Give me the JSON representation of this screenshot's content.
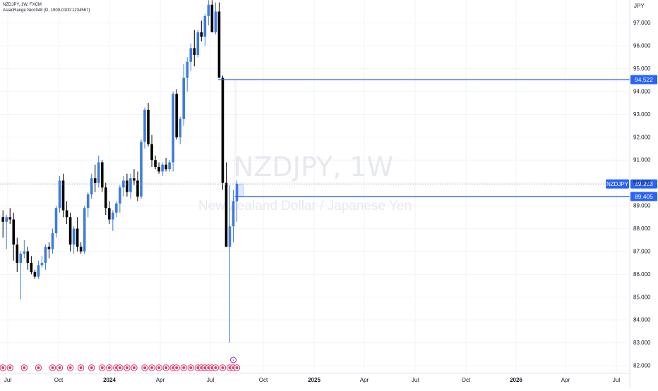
{
  "header": {
    "symbol_line": "NZDJPY, 1W, FXCM",
    "indicator_line": "AsianRange Nico948 (D, 1900-0100:1234567)"
  },
  "watermark": {
    "symbol": "NZDJPY, 1W",
    "description": "New Zealand Dollar / Japanese Yen"
  },
  "colors": {
    "up": "#3d7be0",
    "down": "#000000",
    "line": "#2962ff",
    "badge": "#2962ff",
    "grid": "#f0f3fa",
    "event": "#e53967"
  },
  "chart_data": {
    "type": "candlestick",
    "timeframe": "1W",
    "currency": "JPY",
    "ylim": [
      81.6,
      98.1
    ],
    "y_ticks": [
      "97.000",
      "96.000",
      "95.000",
      "94.000",
      "93.000",
      "92.000",
      "91.000",
      "90.000",
      "89.000",
      "88.000",
      "87.000",
      "86.000",
      "85.000",
      "84.000",
      "83.000",
      "82.000"
    ],
    "x_tick_labels": [
      "Jul",
      "Oct",
      "2024",
      "Apr",
      "Jul",
      "Oct",
      "2025",
      "Apr",
      "Jul",
      "Oct",
      "2026",
      "Apr",
      "Jul"
    ],
    "ohlc": [
      [
        88.5,
        88.8,
        87.6,
        88.3
      ],
      [
        88.3,
        88.6,
        87.1,
        88.5
      ],
      [
        88.5,
        88.9,
        88.2,
        88.4
      ],
      [
        88.4,
        88.7,
        86.6,
        87.3
      ],
      [
        87.3,
        87.6,
        86.1,
        86.5
      ],
      [
        86.5,
        87.0,
        84.9,
        86.9
      ],
      [
        86.9,
        87.5,
        86.7,
        87.0
      ],
      [
        87.0,
        87.2,
        86.2,
        86.5
      ],
      [
        86.5,
        86.8,
        86.0,
        86.1
      ],
      [
        86.1,
        86.2,
        85.8,
        85.9
      ],
      [
        85.9,
        86.6,
        85.8,
        86.4
      ],
      [
        86.4,
        86.8,
        86.3,
        86.5
      ],
      [
        86.5,
        87.3,
        86.2,
        87.2
      ],
      [
        87.2,
        87.4,
        86.7,
        87.1
      ],
      [
        87.1,
        88.0,
        86.9,
        87.8
      ],
      [
        87.8,
        89.0,
        87.6,
        88.9
      ],
      [
        88.9,
        90.3,
        88.7,
        90.1
      ],
      [
        90.1,
        90.4,
        88.5,
        88.8
      ],
      [
        88.8,
        89.2,
        88.2,
        88.5
      ],
      [
        88.5,
        88.7,
        87.0,
        87.3
      ],
      [
        87.3,
        88.1,
        86.9,
        88.0
      ],
      [
        88.0,
        88.5,
        87.0,
        87.2
      ],
      [
        87.2,
        87.4,
        86.9,
        87.0
      ],
      [
        87.0,
        89.0,
        86.9,
        88.9
      ],
      [
        88.9,
        89.6,
        88.5,
        89.5
      ],
      [
        89.5,
        90.4,
        89.3,
        90.2
      ],
      [
        90.2,
        90.8,
        89.6,
        90.0
      ],
      [
        90.0,
        91.2,
        89.8,
        90.9
      ],
      [
        90.9,
        91.0,
        89.6,
        89.8
      ],
      [
        89.8,
        90.0,
        88.6,
        88.9
      ],
      [
        88.9,
        89.2,
        88.2,
        88.4
      ],
      [
        88.4,
        88.8,
        87.9,
        88.7
      ],
      [
        88.7,
        89.2,
        88.5,
        89.1
      ],
      [
        89.1,
        89.9,
        88.7,
        89.8
      ],
      [
        89.8,
        90.3,
        89.4,
        90.1
      ],
      [
        90.1,
        90.4,
        89.4,
        89.6
      ],
      [
        89.6,
        90.4,
        89.3,
        90.2
      ],
      [
        90.2,
        90.6,
        89.9,
        90.1
      ],
      [
        90.1,
        90.5,
        89.2,
        89.4
      ],
      [
        89.4,
        91.9,
        89.3,
        91.8
      ],
      [
        91.8,
        93.3,
        91.5,
        93.2
      ],
      [
        93.2,
        93.5,
        91.6,
        91.7
      ],
      [
        91.7,
        92.1,
        90.7,
        91.0
      ],
      [
        91.0,
        91.2,
        90.6,
        90.7
      ],
      [
        90.7,
        90.9,
        90.4,
        90.5
      ],
      [
        90.5,
        90.9,
        90.3,
        90.8
      ],
      [
        90.8,
        91.1,
        90.5,
        90.6
      ],
      [
        90.6,
        91.0,
        90.5,
        90.9
      ],
      [
        90.9,
        94.0,
        90.5,
        93.9
      ],
      [
        93.9,
        94.1,
        91.9,
        92.0
      ],
      [
        92.0,
        92.9,
        91.7,
        92.8
      ],
      [
        92.8,
        95.2,
        92.5,
        94.6
      ],
      [
        94.6,
        95.5,
        94.0,
        95.3
      ],
      [
        95.3,
        96.1,
        94.9,
        95.9
      ],
      [
        95.9,
        96.7,
        95.1,
        95.6
      ],
      [
        95.6,
        96.7,
        95.5,
        96.6
      ],
      [
        96.6,
        97.1,
        96.2,
        96.4
      ],
      [
        96.4,
        97.4,
        96.0,
        97.3
      ],
      [
        97.3,
        98.0,
        96.9,
        97.8
      ],
      [
        97.8,
        98.0,
        96.6,
        96.6
      ],
      [
        96.6,
        97.9,
        96.5,
        97.5
      ],
      [
        97.5,
        97.9,
        94.6,
        94.6
      ],
      [
        94.6,
        94.7,
        89.7,
        90.0
      ],
      [
        90.0,
        90.9,
        87.2,
        87.2
      ],
      [
        87.2,
        89.9,
        83.0,
        88.1
      ],
      [
        88.1,
        89.7,
        87.4,
        89.2
      ],
      [
        89.2,
        90.1,
        88.3,
        89.95
      ]
    ],
    "levels": [
      {
        "label": "94.522",
        "value": 94.522
      },
      {
        "label": "89.405",
        "value": 89.405
      }
    ],
    "last_price": {
      "symbol": "NZDJPY",
      "label": "89.953",
      "value": 89.953
    },
    "asian_range_box": {
      "from": 89.405,
      "to": 89.953
    },
    "events": {
      "regular_bar_indices": [
        0,
        2,
        6,
        10,
        14,
        16,
        19,
        22,
        25,
        28,
        30,
        32,
        33,
        35,
        37,
        40,
        42,
        44,
        46,
        48,
        49,
        51,
        53,
        55,
        56,
        57,
        58,
        59,
        60,
        62,
        64,
        65,
        66
      ],
      "special_bar_index": 65,
      "special_glyph": "⚡"
    }
  }
}
